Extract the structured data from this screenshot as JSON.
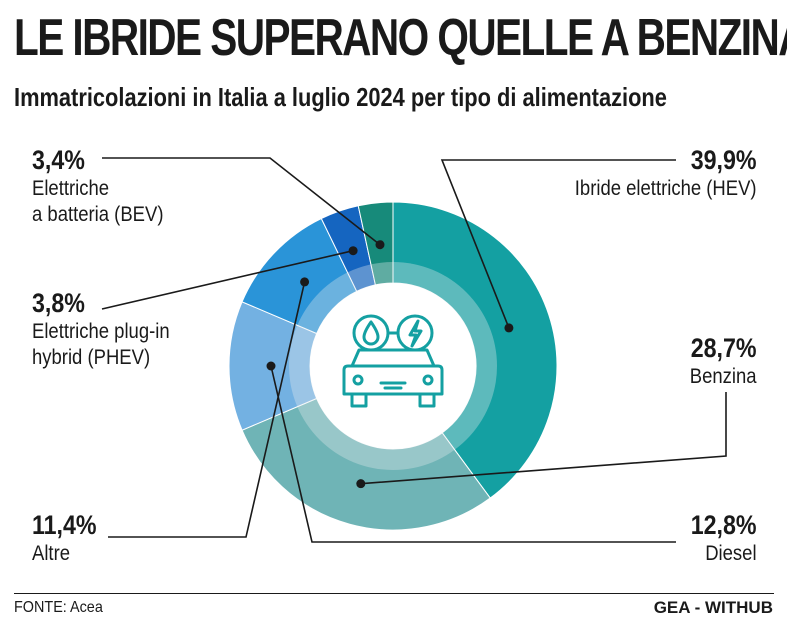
{
  "header": {
    "title": "LE IBRIDE SUPERANO QUELLE A BENZINA",
    "subtitle": "Immatricolazioni in Italia a luglio 2024 per tipo di alimentazione"
  },
  "chart_data": {
    "type": "pie",
    "donut": true,
    "title": "LE IBRIDE SUPERANO QUELLE A BENZINA",
    "subtitle": "Immatricolazioni in Italia a luglio 2024 per tipo di alimentazione",
    "unit": "%",
    "legend": "none",
    "center_icon": "hybrid-car-icon",
    "slices": [
      {
        "name": "Ibride elettriche (HEV)",
        "value": 39.9,
        "label": "39,9%",
        "color": "#14a0a2"
      },
      {
        "name": "Benzina",
        "value": 28.7,
        "label": "28,7%",
        "color": "#6fb4b6"
      },
      {
        "name": "Diesel",
        "value": 12.8,
        "label": "12,8%",
        "color": "#73b1e2"
      },
      {
        "name": "Altre",
        "value": 11.4,
        "label": "11,4%",
        "color": "#2a94d8"
      },
      {
        "name": "Elettriche plug-in\nhybrid (PHEV)",
        "value": 3.8,
        "label": "3,8%",
        "color": "#1565c0"
      },
      {
        "name": "Elettriche\na batteria (BEV)",
        "value": 3.4,
        "label": "3,4%",
        "color": "#178a7a"
      }
    ]
  },
  "footer": {
    "source": "FONTE: Acea",
    "credit": "GEA - WITHUB"
  },
  "colors": {
    "text": "#1a1a1a",
    "hole_ring": "#e6ecee",
    "icon": "#14a0a2"
  }
}
